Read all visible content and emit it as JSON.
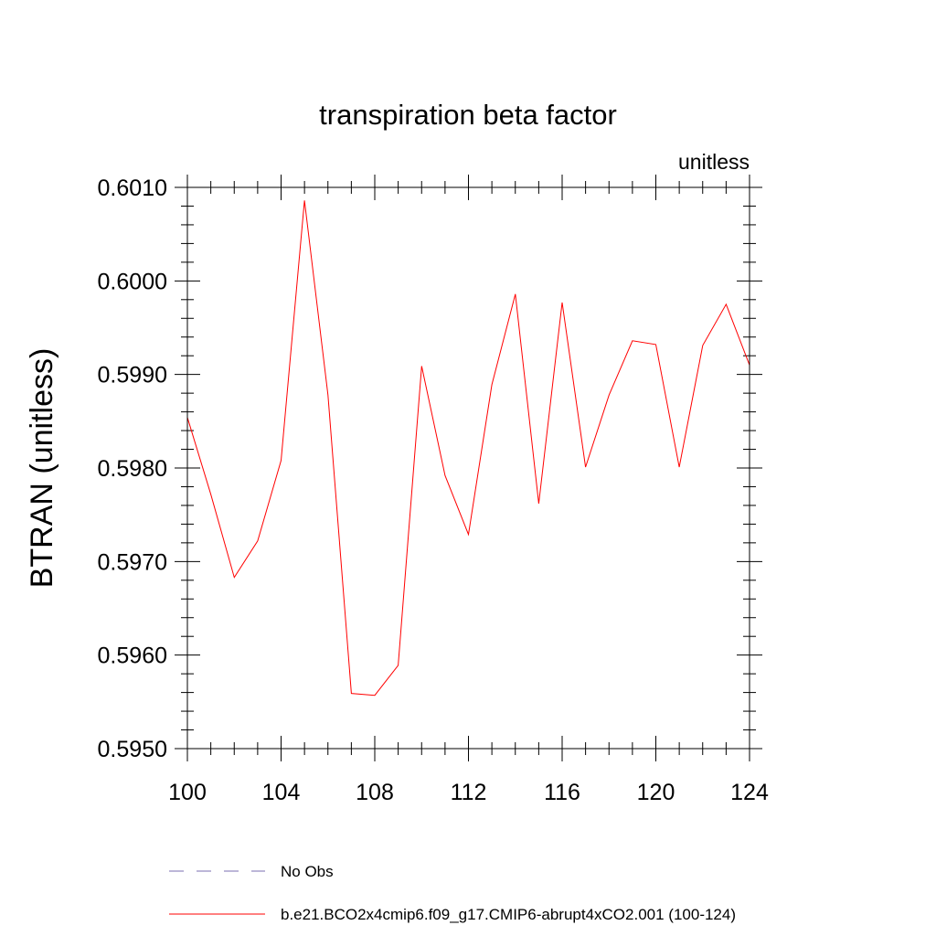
{
  "chart_data": {
    "type": "line",
    "title": "transpiration beta factor",
    "units_label": "unitless",
    "xlabel": "",
    "ylabel": "BTRAN  (unitless)",
    "xlim": [
      100,
      124
    ],
    "ylim": [
      0.595,
      0.601
    ],
    "x_ticks": [
      100,
      104,
      108,
      112,
      116,
      120,
      124
    ],
    "x_tick_labels": [
      "100",
      "104",
      "108",
      "112",
      "116",
      "120",
      "124"
    ],
    "y_ticks": [
      0.595,
      0.596,
      0.597,
      0.598,
      0.599,
      0.6,
      0.601
    ],
    "y_tick_labels": [
      "0.5950",
      "0.5960",
      "0.5970",
      "0.5980",
      "0.5990",
      "0.6000",
      "0.6010"
    ],
    "grid": false,
    "legend_position": "bottom",
    "series": [
      {
        "name": "b.e21.BCO2x4cmip6.f09_g17.CMIP6-abrupt4xCO2.001 (100-124)",
        "color": "#ff0000",
        "style": "solid",
        "x": [
          100,
          101,
          102,
          103,
          104,
          105,
          106,
          107,
          108,
          109,
          110,
          111,
          112,
          113,
          114,
          115,
          116,
          117,
          118,
          119,
          120,
          121,
          122,
          123,
          124
        ],
        "values": [
          0.59854,
          0.59772,
          0.59683,
          0.59722,
          0.59808,
          0.60086,
          0.59878,
          0.59559,
          0.59557,
          0.59589,
          0.59909,
          0.59792,
          0.59729,
          0.59889,
          0.59986,
          0.59762,
          0.59977,
          0.59801,
          0.59878,
          0.59936,
          0.59932,
          0.59801,
          0.59931,
          0.59975,
          0.5991
        ]
      }
    ],
    "legend": [
      {
        "label": "No Obs",
        "color": "#7b6fb0",
        "style": "dashed"
      },
      {
        "label": "b.e21.BCO2x4cmip6.f09_g17.CMIP6-abrupt4xCO2.001 (100-124)",
        "color": "#ff0000",
        "style": "solid"
      }
    ]
  }
}
